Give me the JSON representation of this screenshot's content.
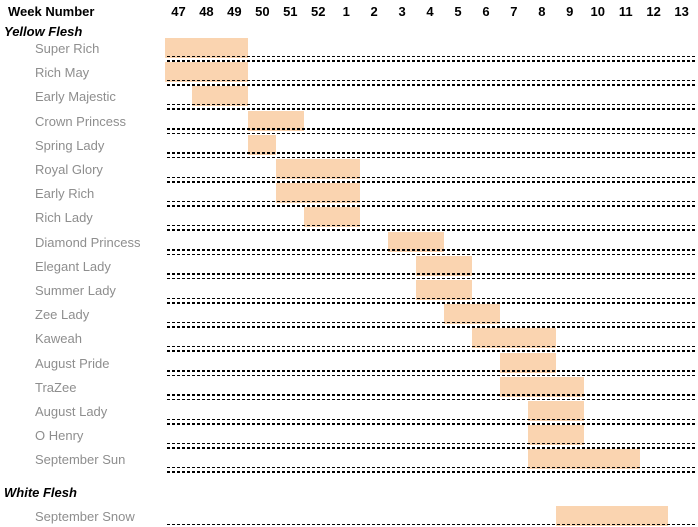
{
  "chart_data": {
    "type": "bar",
    "subtype": "gantt-availability",
    "title": "",
    "x_axis": {
      "label": "Week Number",
      "ticks": [
        "47",
        "48",
        "49",
        "50",
        "51",
        "52",
        "1",
        "2",
        "3",
        "4",
        "5",
        "6",
        "7",
        "8",
        "9",
        "10",
        "11",
        "12",
        "13"
      ]
    },
    "grid": "double-dotted-row-separators",
    "legend": "none",
    "groups": [
      {
        "name": "Yellow Flesh",
        "rows": [
          {
            "variety": "Super Rich",
            "start_week": "47",
            "end_week": "49"
          },
          {
            "variety": "Rich May",
            "start_week": "47",
            "end_week": "49"
          },
          {
            "variety": "Early Majestic",
            "start_week": "48",
            "end_week": "49"
          },
          {
            "variety": "Crown Princess",
            "start_week": "50",
            "end_week": "51"
          },
          {
            "variety": "Spring Lady",
            "start_week": "50",
            "end_week": "50"
          },
          {
            "variety": "Royal Glory",
            "start_week": "51",
            "end_week": "1"
          },
          {
            "variety": "Early Rich",
            "start_week": "51",
            "end_week": "1"
          },
          {
            "variety": "Rich Lady",
            "start_week": "52",
            "end_week": "1"
          },
          {
            "variety": "Diamond Princess",
            "start_week": "3",
            "end_week": "4"
          },
          {
            "variety": "Elegant Lady",
            "start_week": "4",
            "end_week": "5"
          },
          {
            "variety": "Summer Lady",
            "start_week": "4",
            "end_week": "5"
          },
          {
            "variety": "Zee Lady",
            "start_week": "5",
            "end_week": "6"
          },
          {
            "variety": "Kaweah",
            "start_week": "6",
            "end_week": "8"
          },
          {
            "variety": "August Pride",
            "start_week": "7",
            "end_week": "8"
          },
          {
            "variety": "TraZee",
            "start_week": "7",
            "end_week": "9"
          },
          {
            "variety": "August Lady",
            "start_week": "8",
            "end_week": "9"
          },
          {
            "variety": "O Henry",
            "start_week": "8",
            "end_week": "9"
          },
          {
            "variety": "September Sun",
            "start_week": "8",
            "end_week": "11"
          }
        ]
      },
      {
        "name": "White Flesh",
        "rows": [
          {
            "variety": "September Snow",
            "start_week": "9",
            "end_week": "12"
          }
        ]
      }
    ]
  },
  "colors": {
    "bar_fill": "#FAD4B0",
    "row_label": "#8E8E8E",
    "header_text": "#000000",
    "separator": "#000000",
    "background": "#FFFFFF"
  }
}
